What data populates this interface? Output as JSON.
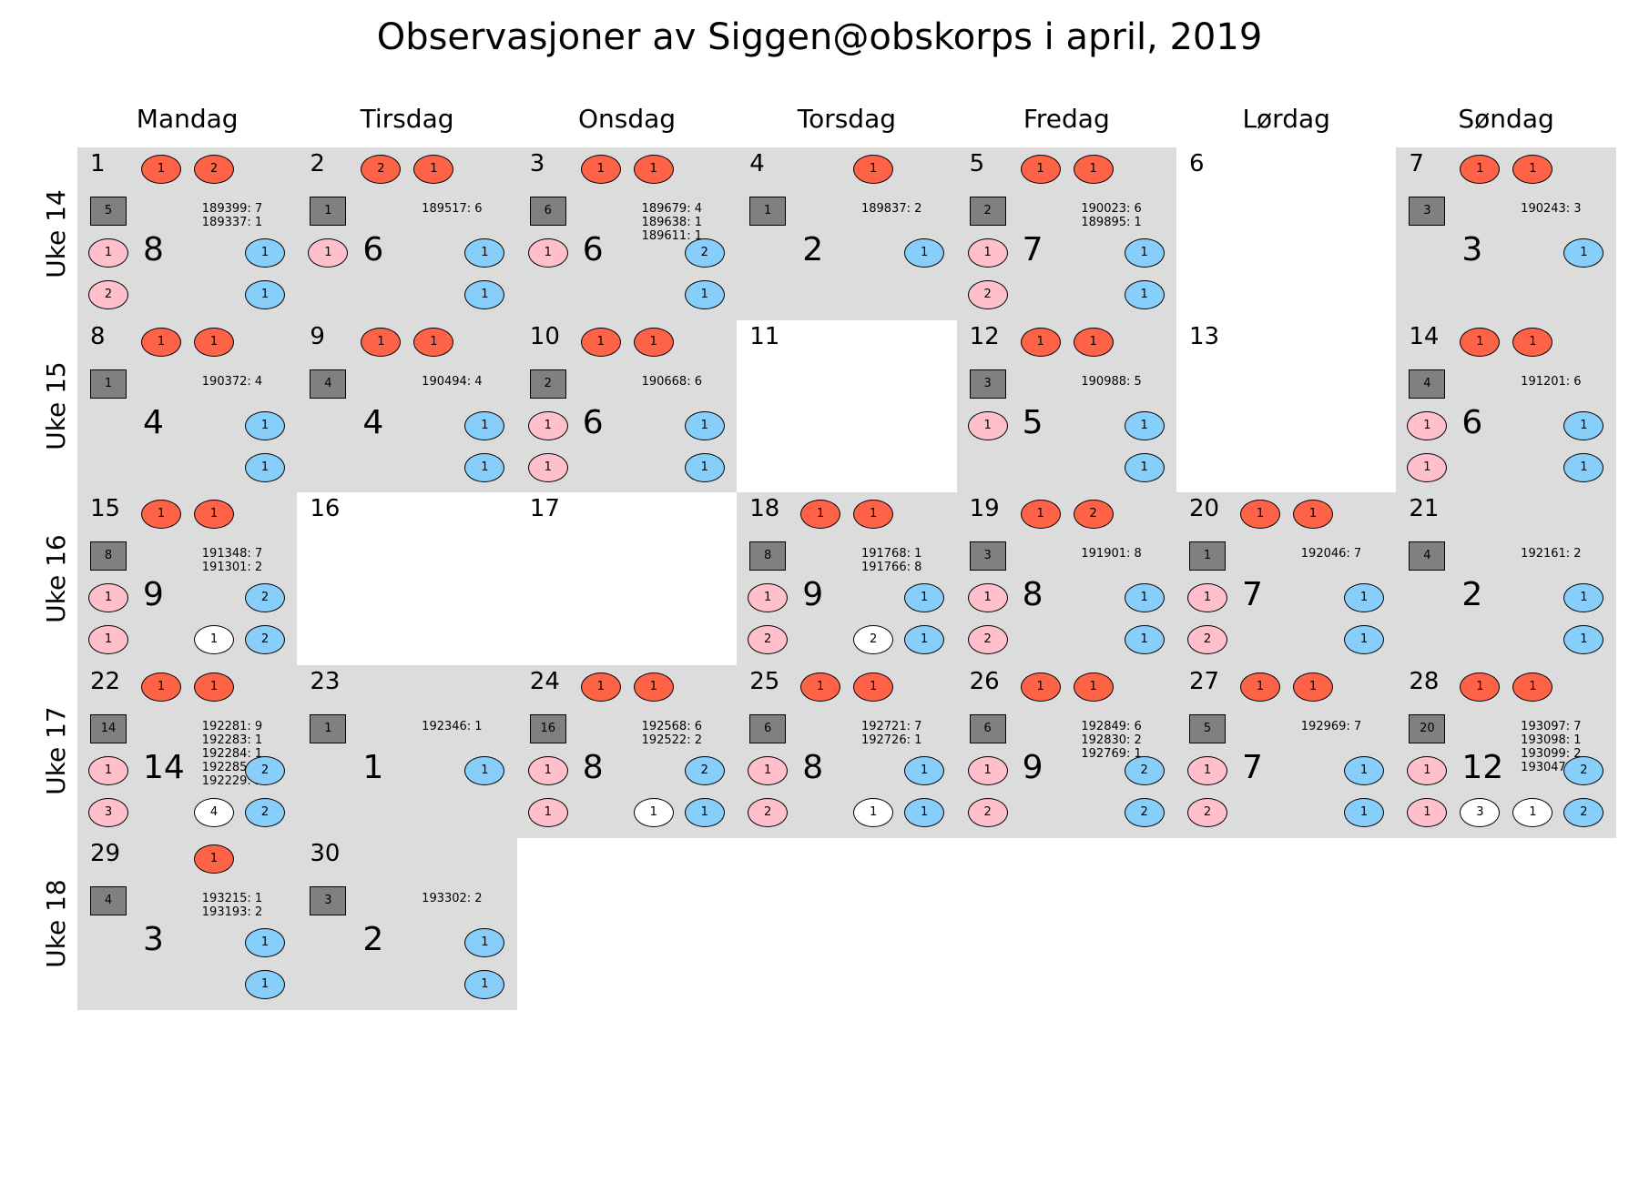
{
  "title": "Observasjoner av Siggen@obskorps i april, 2019",
  "days": [
    "Mandag",
    "Tirsdag",
    "Onsdag",
    "Torsdag",
    "Fredag",
    "Lørdag",
    "Søndag"
  ],
  "weeks": [
    "Uke 14",
    "Uke 15",
    "Uke 16",
    "Uke 17",
    "Uke 18"
  ],
  "colors": {
    "obs_cell": "#dcdcdc",
    "red": "#ff6347",
    "pink": "#ffc0cb",
    "blue": "#87cefa",
    "gray": "#808080",
    "white": "#ffffff"
  },
  "chart_data": {
    "type": "table",
    "title": "Observasjoner av Siggen@obskorps i april, 2019",
    "days": [
      {
        "day": 1,
        "total": 8,
        "red": [
          1,
          2
        ],
        "square": 5,
        "ids": [
          "189399: 7",
          "189337: 1"
        ],
        "pink": [
          1,
          2
        ],
        "white": [],
        "blue": [
          1,
          1
        ]
      },
      {
        "day": 2,
        "total": 6,
        "red": [
          2,
          1
        ],
        "square": 1,
        "ids": [
          "189517: 6"
        ],
        "pink": [
          1
        ],
        "white": [],
        "blue": [
          1,
          1
        ]
      },
      {
        "day": 3,
        "total": 6,
        "red": [
          1,
          1
        ],
        "square": 6,
        "ids": [
          "189679: 4",
          "189638: 1",
          "189611: 1"
        ],
        "pink": [
          1
        ],
        "white": [],
        "blue": [
          2,
          1
        ]
      },
      {
        "day": 4,
        "total": 2,
        "red": [
          1
        ],
        "square": 1,
        "ids": [
          "189837: 2"
        ],
        "pink": [],
        "white": [],
        "blue": [
          1
        ]
      },
      {
        "day": 5,
        "total": 7,
        "red": [
          1,
          1
        ],
        "square": 2,
        "ids": [
          "190023: 6",
          "189895: 1"
        ],
        "pink": [
          1,
          2
        ],
        "white": [],
        "blue": [
          1,
          1
        ]
      },
      {
        "day": 6,
        "empty": true
      },
      {
        "day": 7,
        "total": 3,
        "red": [
          1,
          1
        ],
        "square": 3,
        "ids": [
          "190243: 3"
        ],
        "pink": [],
        "white": [],
        "blue": [
          1
        ]
      },
      {
        "day": 8,
        "total": 4,
        "red": [
          1,
          1
        ],
        "square": 1,
        "ids": [
          "190372: 4"
        ],
        "pink": [],
        "white": [],
        "blue": [
          1,
          1
        ]
      },
      {
        "day": 9,
        "total": 4,
        "red": [
          1,
          1
        ],
        "square": 4,
        "ids": [
          "190494: 4"
        ],
        "pink": [],
        "white": [],
        "blue": [
          1,
          1
        ]
      },
      {
        "day": 10,
        "total": 6,
        "red": [
          1,
          1
        ],
        "square": 2,
        "ids": [
          "190668: 6"
        ],
        "pink": [
          1,
          1
        ],
        "white": [],
        "blue": [
          1,
          1
        ]
      },
      {
        "day": 11,
        "empty": true
      },
      {
        "day": 12,
        "total": 5,
        "red": [
          1,
          1
        ],
        "square": 3,
        "ids": [
          "190988: 5"
        ],
        "pink": [
          1
        ],
        "white": [],
        "blue": [
          1,
          1
        ]
      },
      {
        "day": 13,
        "empty": true
      },
      {
        "day": 14,
        "total": 6,
        "red": [
          1,
          1
        ],
        "square": 4,
        "ids": [
          "191201: 6"
        ],
        "pink": [
          1,
          1
        ],
        "white": [],
        "blue": [
          1,
          1
        ]
      },
      {
        "day": 15,
        "total": 9,
        "red": [
          1,
          1
        ],
        "square": 8,
        "ids": [
          "191348: 7",
          "191301: 2"
        ],
        "pink": [
          1,
          1
        ],
        "white": [
          1
        ],
        "blue": [
          2,
          2
        ]
      },
      {
        "day": 16,
        "empty": true
      },
      {
        "day": 17,
        "empty": true
      },
      {
        "day": 18,
        "total": 9,
        "red": [
          1,
          1
        ],
        "square": 8,
        "ids": [
          "191768: 1",
          "191766: 8"
        ],
        "pink": [
          1,
          2
        ],
        "white": [
          2
        ],
        "blue": [
          1,
          1
        ]
      },
      {
        "day": 19,
        "total": 8,
        "red": [
          1,
          2
        ],
        "square": 3,
        "ids": [
          "191901: 8"
        ],
        "pink": [
          1,
          2
        ],
        "white": [],
        "blue": [
          1,
          1
        ]
      },
      {
        "day": 20,
        "total": 7,
        "red": [
          1,
          1
        ],
        "square": 1,
        "ids": [
          "192046: 7"
        ],
        "pink": [
          1,
          2
        ],
        "white": [],
        "blue": [
          1,
          1
        ]
      },
      {
        "day": 21,
        "total": 2,
        "red": [],
        "square": 4,
        "ids": [
          "192161: 2"
        ],
        "pink": [],
        "white": [],
        "blue": [
          1,
          1
        ]
      },
      {
        "day": 22,
        "total": 14,
        "red": [
          1,
          1
        ],
        "square": 14,
        "ids": [
          "192281: 9",
          "192283: 1",
          "192284: 1",
          "192285: 1",
          "192229: 2"
        ],
        "pink": [
          1,
          3
        ],
        "white": [
          4
        ],
        "blue": [
          2,
          2
        ]
      },
      {
        "day": 23,
        "total": 1,
        "red": [],
        "square": 1,
        "ids": [
          "192346: 1"
        ],
        "pink": [],
        "white": [],
        "blue": [
          1
        ]
      },
      {
        "day": 24,
        "total": 8,
        "red": [
          1,
          1
        ],
        "square": 16,
        "ids": [
          "192568: 6",
          "192522: 2"
        ],
        "pink": [
          1,
          1
        ],
        "white": [
          1
        ],
        "blue": [
          2,
          1
        ]
      },
      {
        "day": 25,
        "total": 8,
        "red": [
          1,
          1
        ],
        "square": 6,
        "ids": [
          "192721: 7",
          "192726: 1"
        ],
        "pink": [
          1,
          2
        ],
        "white": [
          1
        ],
        "blue": [
          1,
          1
        ]
      },
      {
        "day": 26,
        "total": 9,
        "red": [
          1,
          1
        ],
        "square": 6,
        "ids": [
          "192849: 6",
          "192830: 2",
          "192769: 1"
        ],
        "pink": [
          1,
          2
        ],
        "white": [],
        "blue": [
          2,
          2
        ]
      },
      {
        "day": 27,
        "total": 7,
        "red": [
          1,
          1
        ],
        "square": 5,
        "ids": [
          "192969: 7"
        ],
        "pink": [
          1,
          2
        ],
        "white": [],
        "blue": [
          1,
          1
        ]
      },
      {
        "day": 28,
        "total": 12,
        "red": [
          1,
          1
        ],
        "square": 20,
        "ids": [
          "193097: 7",
          "193098: 1",
          "193099: 2",
          "193047: 2"
        ],
        "pink": [
          1,
          1
        ],
        "white": [
          1,
          3
        ],
        "blue": [
          2,
          2
        ]
      },
      {
        "day": 29,
        "total": 3,
        "red": [
          1
        ],
        "square": 4,
        "ids": [
          "193215: 1",
          "193193: 2"
        ],
        "pink": [],
        "white": [],
        "blue": [
          1,
          1
        ]
      },
      {
        "day": 30,
        "total": 2,
        "red": [],
        "square": 3,
        "ids": [
          "193302: 2"
        ],
        "pink": [],
        "white": [],
        "blue": [
          1,
          1
        ]
      }
    ]
  }
}
